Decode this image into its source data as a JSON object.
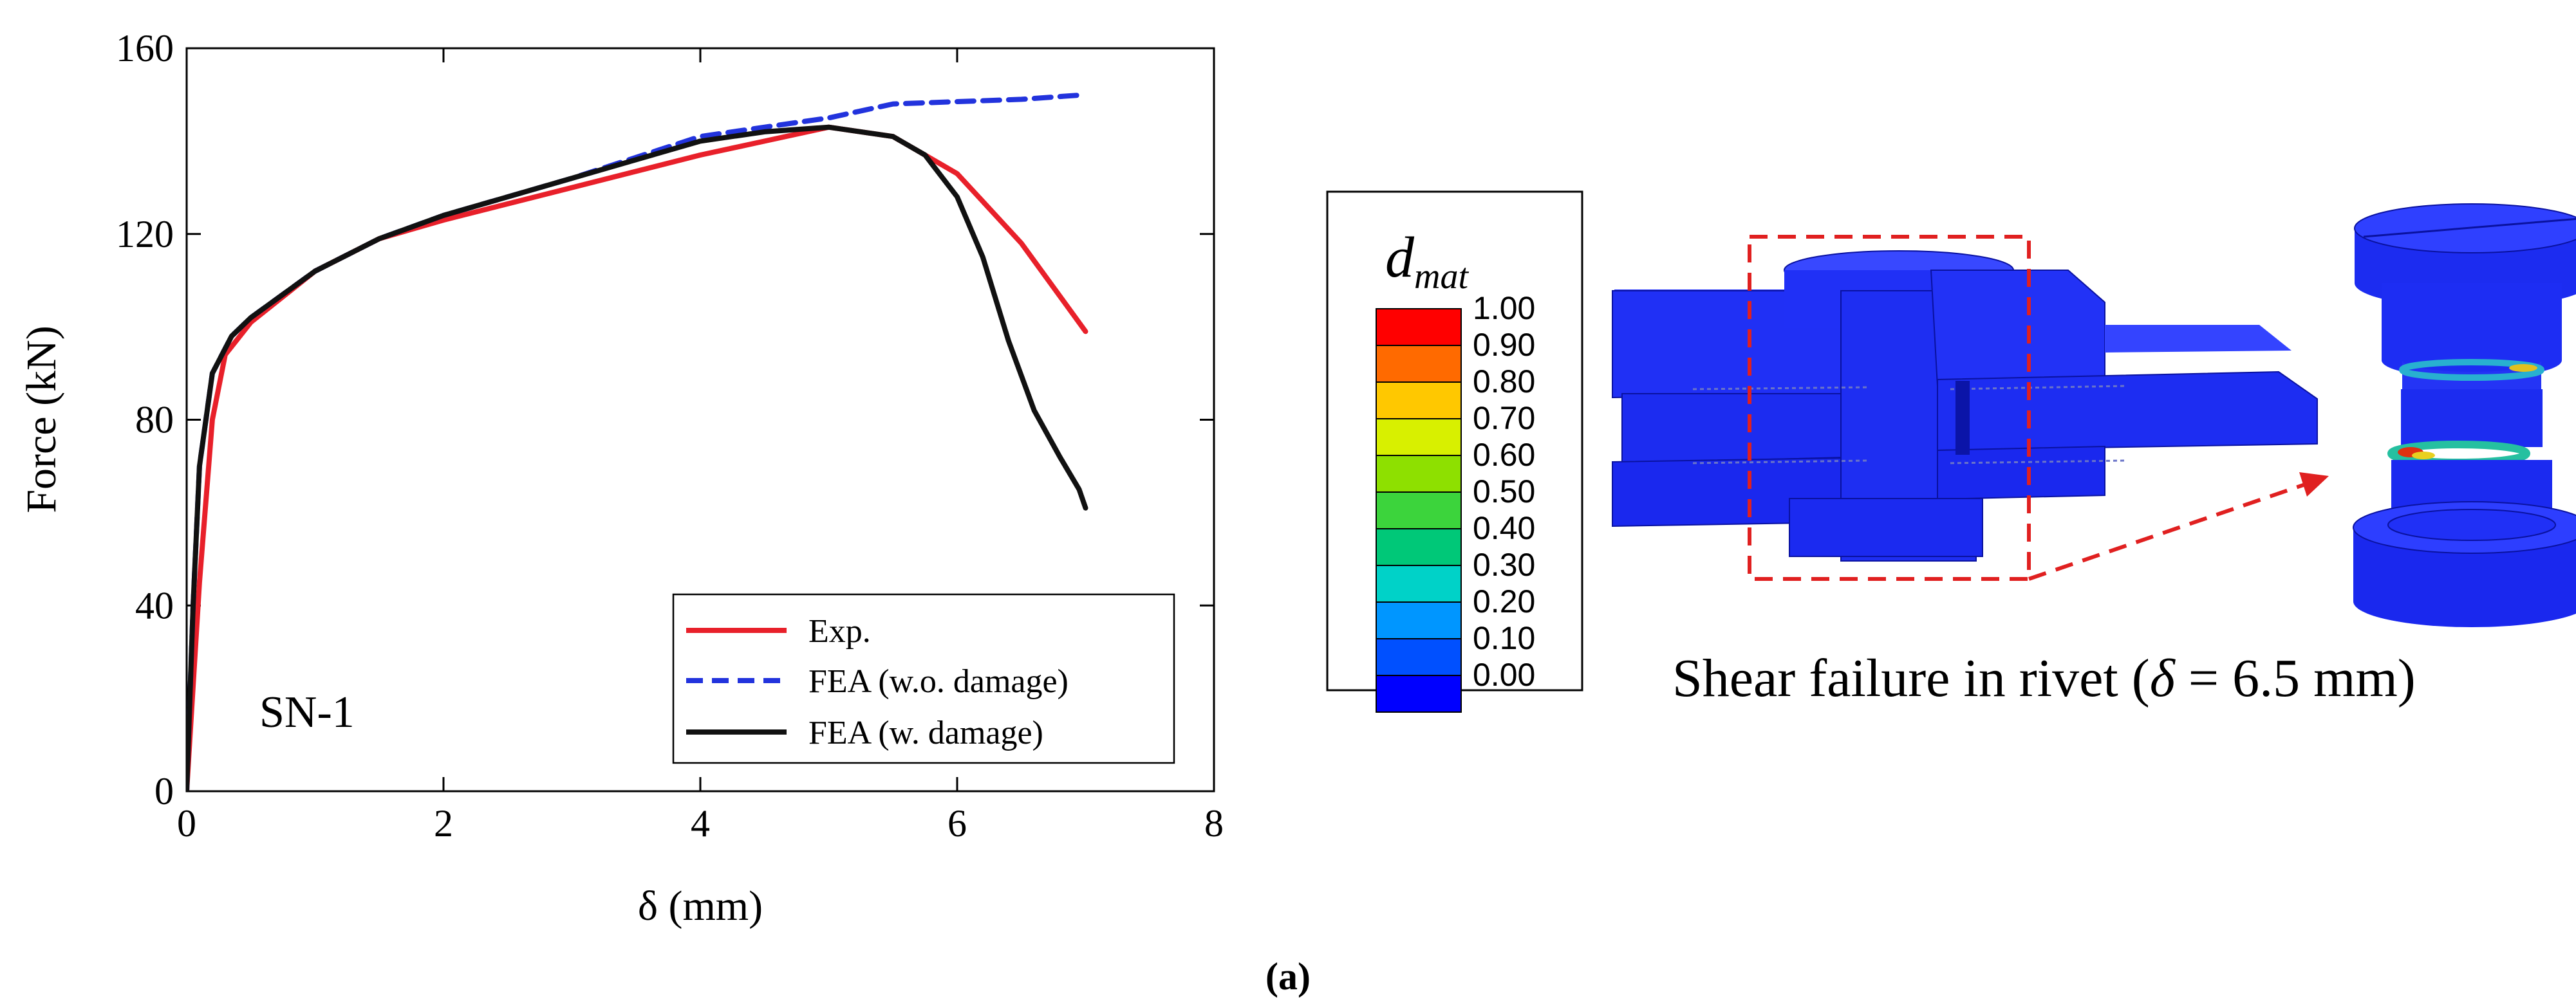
{
  "chart_data": {
    "type": "line",
    "title": "",
    "xlabel": "δ (mm)",
    "ylabel": "Force (kN)",
    "xlim": [
      0,
      8
    ],
    "ylim": [
      0,
      160
    ],
    "xticks": [
      0,
      2,
      4,
      6,
      8
    ],
    "yticks": [
      0,
      40,
      80,
      120,
      160
    ],
    "annotation": "SN-1",
    "legend_position": "bottom-right",
    "series": [
      {
        "name": "Exp.",
        "color": "#e8202a",
        "dash": "solid",
        "points": [
          [
            0,
            0
          ],
          [
            0.1,
            45
          ],
          [
            0.2,
            80
          ],
          [
            0.3,
            94
          ],
          [
            0.5,
            101
          ],
          [
            1.0,
            112
          ],
          [
            1.5,
            119
          ],
          [
            2.0,
            123
          ],
          [
            3.0,
            130
          ],
          [
            4.0,
            137
          ],
          [
            4.5,
            140
          ],
          [
            5.0,
            143
          ],
          [
            5.5,
            141
          ],
          [
            6.0,
            133
          ],
          [
            6.5,
            118
          ],
          [
            7.0,
            99
          ]
        ]
      },
      {
        "name": "FEA (w.o. damage)",
        "color": "#2233dd",
        "dash": "dashed",
        "points": [
          [
            0,
            0
          ],
          [
            0.05,
            40
          ],
          [
            0.1,
            70
          ],
          [
            0.2,
            90
          ],
          [
            0.35,
            98
          ],
          [
            0.5,
            102
          ],
          [
            1.0,
            112
          ],
          [
            1.5,
            119
          ],
          [
            2.0,
            124
          ],
          [
            3.0,
            132
          ],
          [
            4.0,
            141
          ],
          [
            4.5,
            143
          ],
          [
            5.0,
            145
          ],
          [
            5.5,
            148
          ],
          [
            6.0,
            148.5
          ],
          [
            6.5,
            149
          ],
          [
            7.0,
            150
          ]
        ]
      },
      {
        "name": "FEA (w. damage)",
        "color": "#111111",
        "dash": "solid",
        "points": [
          [
            0,
            0
          ],
          [
            0.05,
            40
          ],
          [
            0.1,
            70
          ],
          [
            0.2,
            90
          ],
          [
            0.35,
            98
          ],
          [
            0.5,
            102
          ],
          [
            1.0,
            112
          ],
          [
            1.5,
            119
          ],
          [
            2.0,
            124
          ],
          [
            3.0,
            132
          ],
          [
            4.0,
            140
          ],
          [
            4.5,
            142
          ],
          [
            5.0,
            143
          ],
          [
            5.5,
            141
          ],
          [
            5.75,
            137
          ],
          [
            6.0,
            128
          ],
          [
            6.2,
            115
          ],
          [
            6.4,
            97
          ],
          [
            6.6,
            82
          ],
          [
            6.8,
            72
          ],
          [
            6.95,
            65
          ],
          [
            7.0,
            61
          ]
        ]
      }
    ]
  },
  "colorbar": {
    "title_main": "d",
    "title_sub": "mat",
    "labels": [
      "1.00",
      "0.90",
      "0.80",
      "0.70",
      "0.60",
      "0.50",
      "0.40",
      "0.30",
      "0.20",
      "0.10",
      "0.00"
    ],
    "colors": [
      "#ff0000",
      "#ff6a00",
      "#ffc800",
      "#d8f000",
      "#8ee000",
      "#3cd43c",
      "#00c878",
      "#00d2c8",
      "#0096ff",
      "#0050ff",
      "#0000ff"
    ]
  },
  "illustration": {
    "caption_prefix": "Shear failure in rivet (",
    "caption_symbol": "δ",
    "caption_suffix": " = 6.5 mm)"
  },
  "figure_label": "(a)"
}
